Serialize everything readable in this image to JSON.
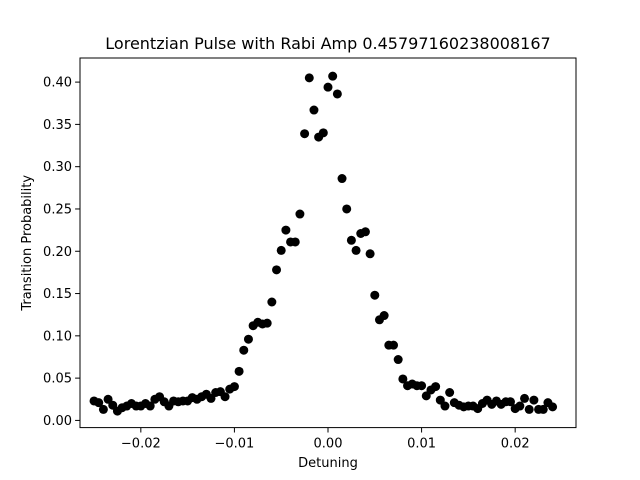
{
  "chart_data": {
    "type": "scatter",
    "title": "Lorentzian Pulse with Rabi Amp 0.45797160238008167",
    "xlabel": "Detuning",
    "ylabel": "Transition Probability",
    "xlim": [
      -0.0265,
      0.0265
    ],
    "ylim": [
      -0.0085,
      0.4285
    ],
    "x_ticks": [
      -0.02,
      -0.01,
      0.0,
      0.01,
      0.02
    ],
    "x_tick_labels": [
      "−0.02",
      "−0.01",
      "0.00",
      "0.01",
      "0.02"
    ],
    "y_ticks": [
      0.0,
      0.05,
      0.1,
      0.15,
      0.2,
      0.25,
      0.3,
      0.35,
      0.4
    ],
    "y_tick_labels": [
      "0.00",
      "0.05",
      "0.10",
      "0.15",
      "0.20",
      "0.25",
      "0.30",
      "0.35",
      "0.40"
    ],
    "grid": false,
    "marker_color": "#000000",
    "points": [
      {
        "x": -0.025,
        "y": 0.023
      },
      {
        "x": -0.0245,
        "y": 0.021
      },
      {
        "x": -0.024,
        "y": 0.013
      },
      {
        "x": -0.0235,
        "y": 0.025
      },
      {
        "x": -0.023,
        "y": 0.018
      },
      {
        "x": -0.0225,
        "y": 0.011
      },
      {
        "x": -0.022,
        "y": 0.015
      },
      {
        "x": -0.0215,
        "y": 0.017
      },
      {
        "x": -0.021,
        "y": 0.02
      },
      {
        "x": -0.0205,
        "y": 0.017
      },
      {
        "x": -0.02,
        "y": 0.017
      },
      {
        "x": -0.0195,
        "y": 0.02
      },
      {
        "x": -0.019,
        "y": 0.017
      },
      {
        "x": -0.0185,
        "y": 0.025
      },
      {
        "x": -0.018,
        "y": 0.028
      },
      {
        "x": -0.0175,
        "y": 0.022
      },
      {
        "x": -0.017,
        "y": 0.017
      },
      {
        "x": -0.0165,
        "y": 0.023
      },
      {
        "x": -0.016,
        "y": 0.022
      },
      {
        "x": -0.0155,
        "y": 0.023
      },
      {
        "x": -0.015,
        "y": 0.023
      },
      {
        "x": -0.0145,
        "y": 0.027
      },
      {
        "x": -0.014,
        "y": 0.025
      },
      {
        "x": -0.0135,
        "y": 0.028
      },
      {
        "x": -0.013,
        "y": 0.031
      },
      {
        "x": -0.0125,
        "y": 0.026
      },
      {
        "x": -0.012,
        "y": 0.033
      },
      {
        "x": -0.0115,
        "y": 0.034
      },
      {
        "x": -0.011,
        "y": 0.028
      },
      {
        "x": -0.0105,
        "y": 0.037
      },
      {
        "x": -0.01,
        "y": 0.04
      },
      {
        "x": -0.0095,
        "y": 0.058
      },
      {
        "x": -0.009,
        "y": 0.083
      },
      {
        "x": -0.0085,
        "y": 0.096
      },
      {
        "x": -0.008,
        "y": 0.112
      },
      {
        "x": -0.0075,
        "y": 0.116
      },
      {
        "x": -0.007,
        "y": 0.114
      },
      {
        "x": -0.0065,
        "y": 0.115
      },
      {
        "x": -0.006,
        "y": 0.14
      },
      {
        "x": -0.0055,
        "y": 0.178
      },
      {
        "x": -0.005,
        "y": 0.201
      },
      {
        "x": -0.0045,
        "y": 0.225
      },
      {
        "x": -0.004,
        "y": 0.211
      },
      {
        "x": -0.0035,
        "y": 0.211
      },
      {
        "x": -0.003,
        "y": 0.244
      },
      {
        "x": -0.0025,
        "y": 0.339
      },
      {
        "x": -0.002,
        "y": 0.405
      },
      {
        "x": -0.0015,
        "y": 0.367
      },
      {
        "x": -0.001,
        "y": 0.335
      },
      {
        "x": -0.0005,
        "y": 0.34
      },
      {
        "x": 0.0,
        "y": 0.394
      },
      {
        "x": 0.0005,
        "y": 0.407
      },
      {
        "x": 0.001,
        "y": 0.386
      },
      {
        "x": 0.0015,
        "y": 0.286
      },
      {
        "x": 0.002,
        "y": 0.25
      },
      {
        "x": 0.0025,
        "y": 0.213
      },
      {
        "x": 0.003,
        "y": 0.201
      },
      {
        "x": 0.0035,
        "y": 0.221
      },
      {
        "x": 0.004,
        "y": 0.223
      },
      {
        "x": 0.0045,
        "y": 0.197
      },
      {
        "x": 0.005,
        "y": 0.148
      },
      {
        "x": 0.0055,
        "y": 0.119
      },
      {
        "x": 0.006,
        "y": 0.124
      },
      {
        "x": 0.0065,
        "y": 0.089
      },
      {
        "x": 0.007,
        "y": 0.089
      },
      {
        "x": 0.0075,
        "y": 0.072
      },
      {
        "x": 0.008,
        "y": 0.049
      },
      {
        "x": 0.0085,
        "y": 0.041
      },
      {
        "x": 0.009,
        "y": 0.043
      },
      {
        "x": 0.0095,
        "y": 0.041
      },
      {
        "x": 0.01,
        "y": 0.041
      },
      {
        "x": 0.0105,
        "y": 0.029
      },
      {
        "x": 0.011,
        "y": 0.036
      },
      {
        "x": 0.0115,
        "y": 0.04
      },
      {
        "x": 0.012,
        "y": 0.024
      },
      {
        "x": 0.0125,
        "y": 0.017
      },
      {
        "x": 0.013,
        "y": 0.033
      },
      {
        "x": 0.0135,
        "y": 0.021
      },
      {
        "x": 0.014,
        "y": 0.018
      },
      {
        "x": 0.0145,
        "y": 0.016
      },
      {
        "x": 0.015,
        "y": 0.017
      },
      {
        "x": 0.0155,
        "y": 0.017
      },
      {
        "x": 0.016,
        "y": 0.014
      },
      {
        "x": 0.0165,
        "y": 0.02
      },
      {
        "x": 0.017,
        "y": 0.024
      },
      {
        "x": 0.0175,
        "y": 0.019
      },
      {
        "x": 0.018,
        "y": 0.023
      },
      {
        "x": 0.0185,
        "y": 0.019
      },
      {
        "x": 0.019,
        "y": 0.022
      },
      {
        "x": 0.0195,
        "y": 0.022
      },
      {
        "x": 0.02,
        "y": 0.014
      },
      {
        "x": 0.0205,
        "y": 0.017
      },
      {
        "x": 0.021,
        "y": 0.026
      },
      {
        "x": 0.0215,
        "y": 0.013
      },
      {
        "x": 0.022,
        "y": 0.024
      },
      {
        "x": 0.0225,
        "y": 0.013
      },
      {
        "x": 0.023,
        "y": 0.013
      },
      {
        "x": 0.0235,
        "y": 0.021
      },
      {
        "x": 0.024,
        "y": 0.016
      }
    ]
  }
}
